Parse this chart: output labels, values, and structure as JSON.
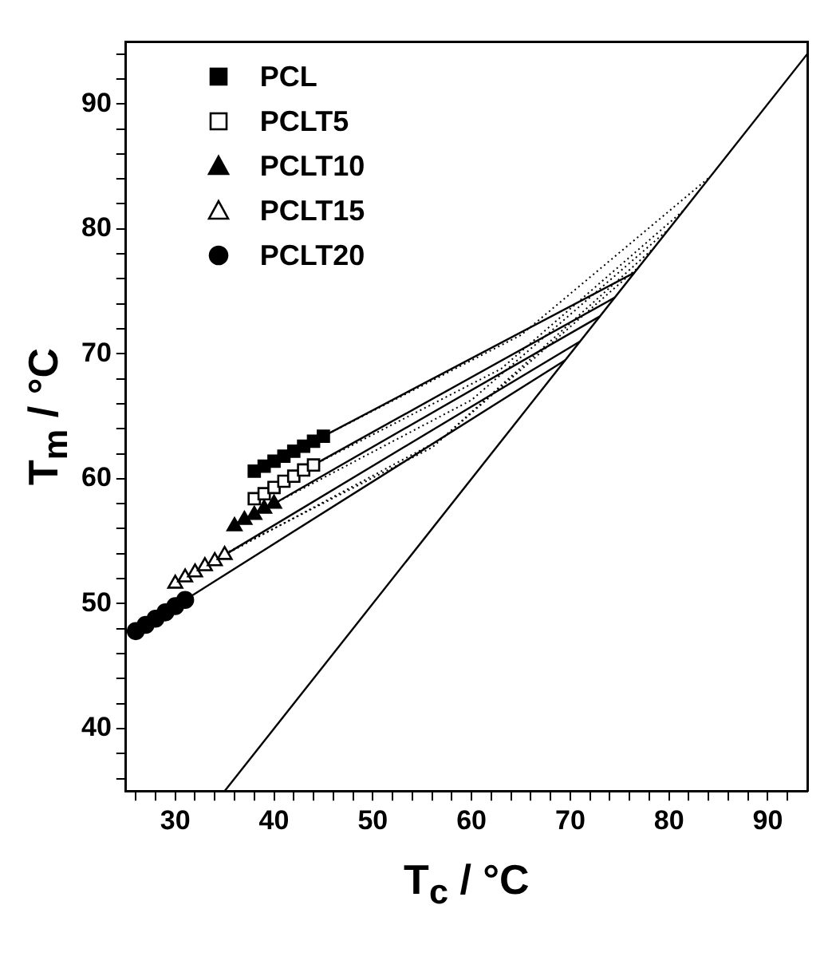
{
  "chart_data": {
    "type": "scatter",
    "xlabel": "T$_{c}$ / °C",
    "ylabel": "T$_{m}$ / °C",
    "xlim": [
      25,
      94
    ],
    "ylim": [
      35,
      95
    ],
    "xticks": [
      {
        "value": 26,
        "label": null
      },
      {
        "value": 28,
        "label": null
      },
      30,
      {
        "value": 32,
        "label": null
      },
      {
        "value": 34,
        "label": null
      },
      {
        "value": 36,
        "label": null
      },
      {
        "value": 38,
        "label": null
      },
      40,
      {
        "value": 42,
        "label": null
      },
      {
        "value": 44,
        "label": null
      },
      {
        "value": 46,
        "label": null
      },
      {
        "value": 48,
        "label": null
      },
      50,
      {
        "value": 52,
        "label": null
      },
      {
        "value": 54,
        "label": null
      },
      {
        "value": 56,
        "label": null
      },
      {
        "value": 58,
        "label": null
      },
      60,
      {
        "value": 62,
        "label": null
      },
      {
        "value": 64,
        "label": null
      },
      {
        "value": 66,
        "label": null
      },
      {
        "value": 68,
        "label": null
      },
      70,
      {
        "value": 72,
        "label": null
      },
      {
        "value": 74,
        "label": null
      },
      {
        "value": 76,
        "label": null
      },
      {
        "value": 78,
        "label": null
      },
      80,
      {
        "value": 82,
        "label": null
      },
      {
        "value": 84,
        "label": null
      },
      {
        "value": 86,
        "label": null
      },
      {
        "value": 88,
        "label": null
      },
      90,
      {
        "value": 92,
        "label": null
      }
    ],
    "yticks": [
      {
        "value": 36,
        "label": null
      },
      {
        "value": 38,
        "label": null
      },
      40,
      {
        "value": 42,
        "label": null
      },
      {
        "value": 44,
        "label": null
      },
      {
        "value": 46,
        "label": null
      },
      {
        "value": 48,
        "label": null
      },
      50,
      {
        "value": 52,
        "label": null
      },
      {
        "value": 54,
        "label": null
      },
      {
        "value": 56,
        "label": null
      },
      {
        "value": 58,
        "label": null
      },
      60,
      {
        "value": 62,
        "label": null
      },
      {
        "value": 64,
        "label": null
      },
      {
        "value": 66,
        "label": null
      },
      {
        "value": 68,
        "label": null
      },
      70,
      {
        "value": 72,
        "label": null
      },
      {
        "value": 74,
        "label": null
      },
      {
        "value": 76,
        "label": null
      },
      {
        "value": 78,
        "label": null
      },
      80,
      {
        "value": 82,
        "label": null
      },
      {
        "value": 84,
        "label": null
      },
      {
        "value": 86,
        "label": null
      },
      {
        "value": 88,
        "label": null
      },
      90,
      {
        "value": 92,
        "label": null
      },
      {
        "value": 94,
        "label": null
      }
    ],
    "grid": false,
    "legend": "top left",
    "series": [
      {
        "name": "PCL",
        "marker": "square",
        "color": "#000000",
        "x": [
          38,
          39,
          40,
          41,
          42,
          43,
          44,
          45
        ],
        "values": [
          60.6,
          61.0,
          61.4,
          61.8,
          62.2,
          62.6,
          63.0,
          63.4
        ]
      },
      {
        "name": "PCLT5",
        "marker": "square",
        "color": "#ffffff",
        "x": [
          38,
          39,
          40,
          41,
          42,
          43,
          44
        ],
        "values": [
          58.4,
          58.8,
          59.3,
          59.8,
          60.2,
          60.7,
          61.1
        ]
      },
      {
        "name": "PCLT10",
        "marker": "triangle",
        "color": "#000000",
        "x": [
          36,
          37,
          38,
          39,
          40
        ],
        "values": [
          56.2,
          56.7,
          57.1,
          57.6,
          58.0
        ]
      },
      {
        "name": "PCLT15",
        "marker": "triangle",
        "color": "#ffffff",
        "x": [
          30,
          31,
          32,
          33,
          34,
          35
        ],
        "values": [
          51.6,
          52.1,
          52.5,
          53.0,
          53.4,
          53.9
        ]
      },
      {
        "name": "PCLT20",
        "marker": "circle",
        "color": "#000000",
        "x": [
          26,
          27,
          28,
          29,
          30,
          31
        ],
        "values": [
          47.8,
          48.3,
          48.8,
          49.3,
          49.8,
          50.3
        ]
      },
      {
        "type": "line",
        "marker": "none",
        "line_style": "solid",
        "color": "#000000",
        "x": [
          35,
          94
        ],
        "values": [
          35,
          94
        ]
      },
      {
        "type": "line",
        "marker": "none",
        "line_style": "solid",
        "color": "#000000",
        "x": [
          45,
          76.5
        ],
        "values": [
          63.4,
          76.5
        ]
      },
      {
        "type": "line",
        "marker": "none",
        "line_style": "solid",
        "color": "#000000",
        "x": [
          44,
          74.5
        ],
        "values": [
          61.1,
          74.5
        ]
      },
      {
        "type": "line",
        "marker": "none",
        "line_style": "solid",
        "color": "#000000",
        "x": [
          40,
          73
        ],
        "values": [
          58.0,
          73
        ]
      },
      {
        "type": "line",
        "marker": "none",
        "line_style": "solid",
        "color": "#000000",
        "x": [
          35,
          71
        ],
        "values": [
          53.9,
          71
        ]
      },
      {
        "type": "line",
        "marker": "none",
        "line_style": "solid",
        "color": "#000000",
        "x": [
          31,
          69.5
        ],
        "values": [
          50.3,
          69.5
        ]
      },
      {
        "type": "line",
        "marker": "none",
        "line_style": "dotted",
        "color": "#000000",
        "x": [
          45,
          65,
          84.2
        ],
        "values": [
          63.4,
          71.5,
          84.2
        ]
      },
      {
        "type": "line",
        "marker": "none",
        "line_style": "dotted",
        "color": "#000000",
        "x": [
          44,
          63,
          81.5
        ],
        "values": [
          61.1,
          68.8,
          81.5
        ]
      },
      {
        "type": "line",
        "marker": "none",
        "line_style": "dotted",
        "color": "#000000",
        "x": [
          40,
          60,
          80
        ],
        "values": [
          58.0,
          66.3,
          80
        ]
      },
      {
        "type": "line",
        "marker": "none",
        "line_style": "dotted",
        "color": "#000000",
        "x": [
          35,
          57,
          78.5
        ],
        "values": [
          53.9,
          63.2,
          78.5
        ]
      },
      {
        "type": "line",
        "marker": "none",
        "line_style": "dotted",
        "color": "#000000",
        "x": [
          35,
          56,
          77
        ],
        "values": [
          54.0,
          62.5,
          77
        ]
      }
    ]
  }
}
